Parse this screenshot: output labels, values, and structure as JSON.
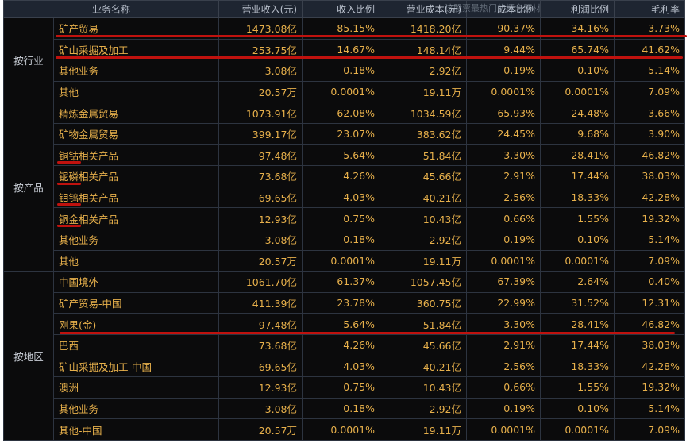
{
  "header": [
    "业务名称",
    "营业收入(元)",
    "收入比例",
    "营业成本(元)",
    "成本比例",
    "利润比例",
    "毛利率"
  ],
  "search_placeholder": "该股票最热门的概念题材",
  "groups": [
    {
      "label": "按行业",
      "rows": [
        [
          "矿产贸易",
          "1473.08亿",
          "85.15%",
          "1418.20亿",
          "90.37%",
          "34.16%",
          "3.73%"
        ],
        [
          "矿山采掘及加工",
          "253.75亿",
          "14.67%",
          "148.14亿",
          "9.44%",
          "65.74%",
          "41.62%"
        ],
        [
          "其他业务",
          "3.08亿",
          "0.18%",
          "2.92亿",
          "0.19%",
          "0.10%",
          "5.14%"
        ],
        [
          "其他",
          "20.57万",
          "0.0001%",
          "19.11万",
          "0.0001%",
          "0.0001%",
          "7.09%"
        ]
      ]
    },
    {
      "label": "按产品",
      "rows": [
        [
          "精炼金属贸易",
          "1073.91亿",
          "62.08%",
          "1034.59亿",
          "65.93%",
          "24.48%",
          "3.66%"
        ],
        [
          "矿物金属贸易",
          "399.17亿",
          "23.07%",
          "383.62亿",
          "24.45%",
          "9.68%",
          "3.90%"
        ],
        [
          "铜钴相关产品",
          "97.48亿",
          "5.64%",
          "51.84亿",
          "3.30%",
          "28.41%",
          "46.82%"
        ],
        [
          "铌磷相关产品",
          "73.68亿",
          "4.26%",
          "45.66亿",
          "2.91%",
          "17.44%",
          "38.03%"
        ],
        [
          "钼钨相关产品",
          "69.65亿",
          "4.03%",
          "40.21亿",
          "2.56%",
          "18.33%",
          "42.28%"
        ],
        [
          "铜金相关产品",
          "12.93亿",
          "0.75%",
          "10.43亿",
          "0.66%",
          "1.55%",
          "19.32%"
        ],
        [
          "其他业务",
          "3.08亿",
          "0.18%",
          "2.92亿",
          "0.19%",
          "0.10%",
          "5.14%"
        ],
        [
          "其他",
          "20.57万",
          "0.0001%",
          "19.11万",
          "0.0001%",
          "0.0001%",
          "7.09%"
        ]
      ]
    },
    {
      "label": "按地区",
      "rows": [
        [
          "中国境外",
          "1061.70亿",
          "61.37%",
          "1057.45亿",
          "67.39%",
          "2.64%",
          "0.40%"
        ],
        [
          "矿产贸易-中国",
          "411.39亿",
          "23.78%",
          "360.75亿",
          "22.99%",
          "31.52%",
          "12.31%"
        ],
        [
          "刚果(金)",
          "97.48亿",
          "5.64%",
          "51.84亿",
          "3.30%",
          "28.41%",
          "46.82%"
        ],
        [
          "巴西",
          "73.68亿",
          "4.26%",
          "45.66亿",
          "2.91%",
          "17.44%",
          "38.03%"
        ],
        [
          "矿山采掘及加工-中国",
          "69.65亿",
          "4.03%",
          "40.21亿",
          "2.56%",
          "18.33%",
          "42.28%"
        ],
        [
          "澳洲",
          "12.93亿",
          "0.75%",
          "10.43亿",
          "0.66%",
          "1.55%",
          "19.32%"
        ],
        [
          "其他业务",
          "3.08亿",
          "0.18%",
          "2.92亿",
          "0.19%",
          "0.10%",
          "5.14%"
        ],
        [
          "其他-中国",
          "20.57万",
          "0.0001%",
          "19.11万",
          "0.0001%",
          "0.0001%",
          "7.09%"
        ]
      ]
    }
  ],
  "colors": {
    "value": "#e7b04b",
    "annotation": "#c0120e",
    "header_bg": "#1e2531"
  }
}
